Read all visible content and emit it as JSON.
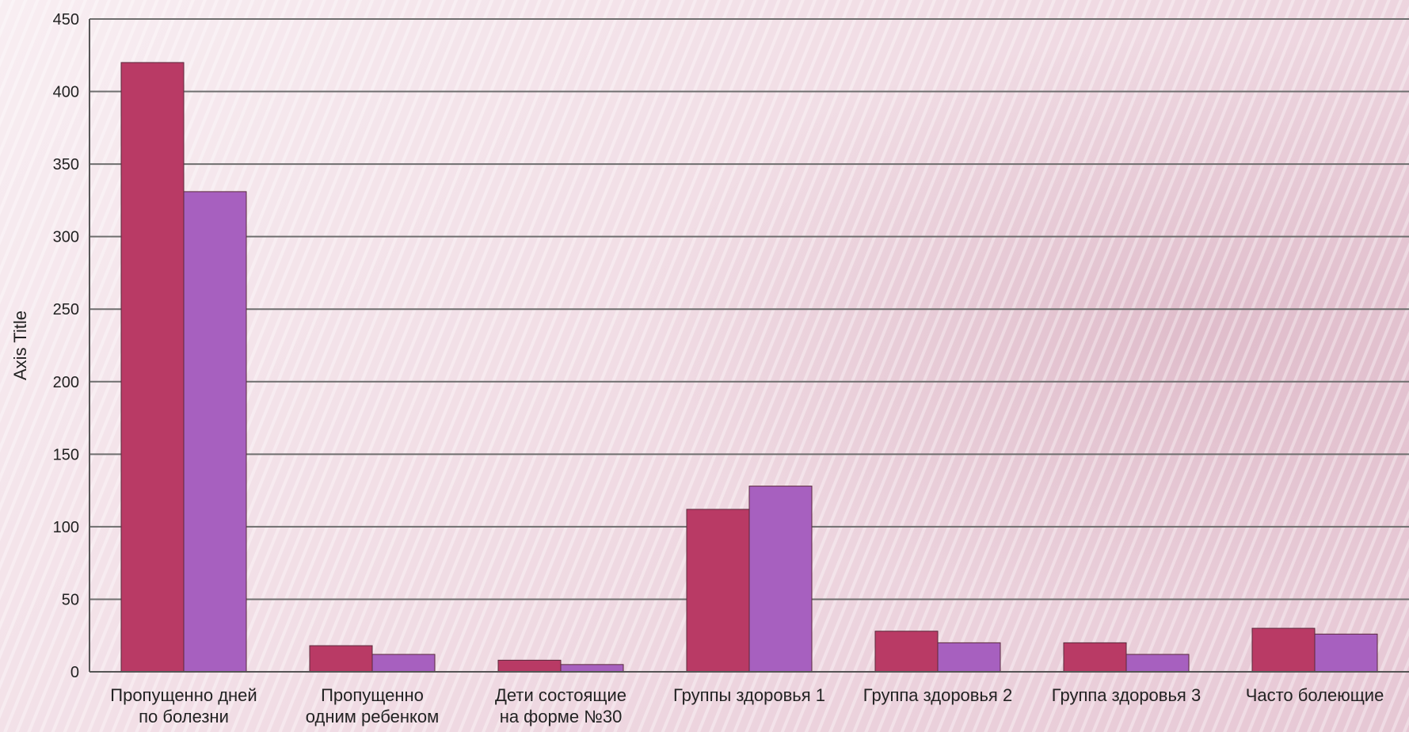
{
  "colors": {
    "series_1": "#b93a65",
    "series_2": "#a760bf",
    "gridline": "#6e6e6e",
    "axis": "#555555"
  },
  "chart_data": {
    "type": "bar",
    "title": "",
    "xlabel": "",
    "ylabel": "Axis Title",
    "ylim": [
      0,
      450
    ],
    "yticks": [
      0,
      50,
      100,
      150,
      200,
      250,
      300,
      350,
      400,
      450
    ],
    "grid": true,
    "legend": "none",
    "categories": [
      [
        "Пропущенно дней",
        "по болезни"
      ],
      [
        "Пропущенно",
        "одним ребенком"
      ],
      [
        "Дети состоящие",
        "на форме №30"
      ],
      [
        "Группы здоровья 1"
      ],
      [
        "Группа здоровья 2"
      ],
      [
        "Группа здоровья 3"
      ],
      [
        "Часто болеющие"
      ]
    ],
    "series": [
      {
        "values": [
          420,
          18,
          8,
          112,
          28,
          20,
          30
        ]
      },
      {
        "values": [
          331,
          12,
          5,
          128,
          20,
          12,
          26
        ]
      }
    ]
  }
}
